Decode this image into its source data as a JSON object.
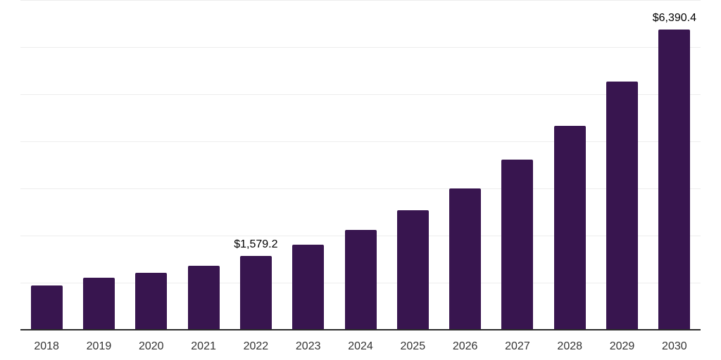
{
  "chart_data": {
    "type": "bar",
    "title": "",
    "xlabel": "",
    "ylabel": "",
    "categories": [
      "2018",
      "2019",
      "2020",
      "2021",
      "2022",
      "2023",
      "2024",
      "2025",
      "2026",
      "2027",
      "2028",
      "2029",
      "2030"
    ],
    "values": [
      960,
      1120,
      1230,
      1380,
      1579.2,
      1820,
      2140,
      2550,
      3010,
      3630,
      4350,
      5280,
      6390.4
    ],
    "value_labels": {
      "2022": "$1,579.2",
      "2030": "$6,390.4"
    },
    "ylim": [
      0,
      7000
    ],
    "gridline_interval": 1000,
    "gridline_count": 7,
    "grid": true,
    "legend": false,
    "bar_color": "#38154f",
    "gridline_color": "#ededed",
    "axis_line_color": "#2b2b2b",
    "value_label_color": "#000000",
    "tick_label_color": "#333333"
  }
}
